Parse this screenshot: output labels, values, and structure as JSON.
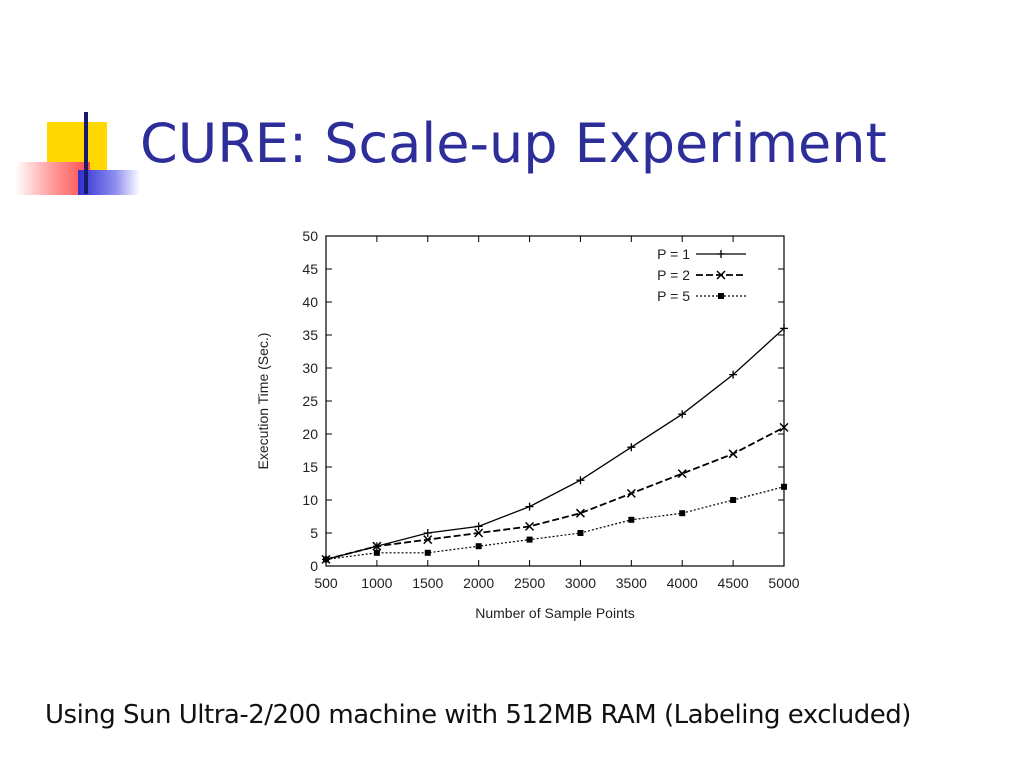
{
  "slide": {
    "title": "CURE:  Scale-up Experiment",
    "caption": "Using Sun Ultra-2/200 machine with 512MB RAM (Labeling excluded)",
    "title_color": "#2e2e9a",
    "accent_colors": {
      "yellow": "#ffd800",
      "red": "#ff5a5a",
      "blue": "#3b3bd6",
      "dark": "#1a1a6a"
    }
  },
  "chart_data": {
    "type": "line",
    "title": "",
    "xlabel": "Number of Sample Points",
    "ylabel": "Execution Time (Sec.)",
    "xlim": [
      500,
      5000
    ],
    "ylim": [
      0,
      50
    ],
    "xticks": [
      500,
      1000,
      1500,
      2000,
      2500,
      3000,
      3500,
      4000,
      4500,
      5000
    ],
    "yticks": [
      0,
      5,
      10,
      15,
      20,
      25,
      30,
      35,
      40,
      45,
      50
    ],
    "grid": false,
    "legend_position": "top-right",
    "x": [
      500,
      1000,
      1500,
      2000,
      2500,
      3000,
      3500,
      4000,
      4500,
      5000
    ],
    "series": [
      {
        "name": "P = 1",
        "style": "solid",
        "marker": "plus",
        "values": [
          1,
          3,
          5,
          6,
          9,
          13,
          18,
          23,
          29,
          36
        ]
      },
      {
        "name": "P = 2",
        "style": "dashed",
        "marker": "cross",
        "values": [
          1,
          3,
          4,
          5,
          6,
          8,
          11,
          14,
          17,
          21
        ]
      },
      {
        "name": "P = 5",
        "style": "dotted",
        "marker": "square",
        "values": [
          1,
          2,
          2,
          3,
          4,
          5,
          7,
          8,
          10,
          12
        ]
      }
    ]
  }
}
